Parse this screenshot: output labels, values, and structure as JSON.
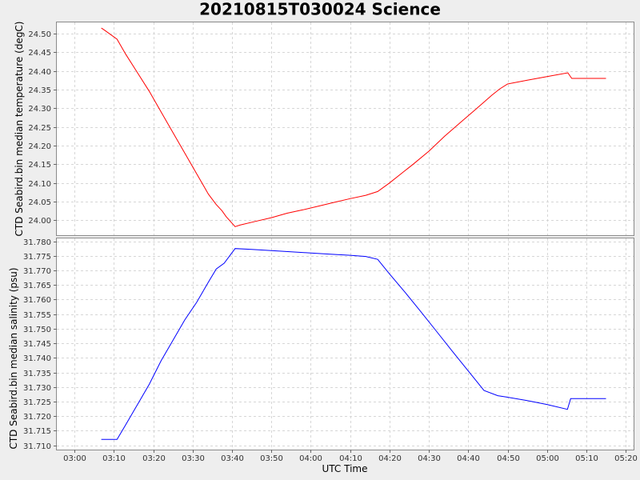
{
  "chart_data": {
    "type": "line",
    "title": "20210815T030024 Science",
    "xlabel": "UTC Time",
    "x_ticks": [
      "03:00",
      "03:10",
      "03:20",
      "03:30",
      "03:40",
      "03:50",
      "04:00",
      "04:10",
      "04:20",
      "04:30",
      "04:40",
      "04:50",
      "05:00",
      "05:10",
      "05:20"
    ],
    "x_tick_minutes": [
      180,
      190,
      200,
      210,
      220,
      230,
      240,
      250,
      260,
      270,
      280,
      290,
      300,
      310,
      320
    ],
    "xlim_minutes": [
      175.5,
      322
    ],
    "grid": true,
    "panels": [
      {
        "ylabel": "CTD Seabird.bin median temperature (degC)",
        "ylim": [
          23.96,
          24.53
        ],
        "y_ticks": [
          "24.00",
          "24.05",
          "24.10",
          "24.15",
          "24.20",
          "24.25",
          "24.30",
          "24.35",
          "24.40",
          "24.45",
          "24.50"
        ],
        "y_tick_values": [
          24.0,
          24.05,
          24.1,
          24.15,
          24.2,
          24.25,
          24.3,
          24.35,
          24.4,
          24.45,
          24.5
        ],
        "series": [
          {
            "color": "#ff0000",
            "x_minutes": [
              186.8,
              187.5,
              190.8,
              193,
              196,
              199,
              202,
              205,
              208,
              211,
              214,
              216,
              217.5,
              218.5,
              220.8,
              222,
              226,
              230,
              234,
              238,
              242,
              246,
              250,
              254,
              257,
              260,
              263,
              266,
              270,
              274,
              278,
              282,
              286,
              288,
              290,
              295,
              300,
              305.3,
              306.3,
              315
            ],
            "y_values": [
              24.515,
              24.51,
              24.485,
              24.445,
              24.395,
              24.345,
              24.29,
              24.235,
              24.18,
              24.125,
              24.07,
              24.042,
              24.025,
              24.01,
              23.983,
              23.987,
              23.997,
              24.007,
              24.019,
              24.028,
              24.038,
              24.048,
              24.058,
              24.067,
              24.077,
              24.1,
              24.125,
              24.15,
              24.185,
              24.225,
              24.262,
              24.298,
              24.335,
              24.352,
              24.365,
              24.375,
              24.385,
              24.395,
              24.38,
              24.38
            ]
          }
        ]
      },
      {
        "ylabel": "CTD Seabird.bin median salinity (psu)",
        "ylim": [
          31.7085,
          31.781
        ],
        "y_ticks": [
          "31.710",
          "31.715",
          "31.720",
          "31.725",
          "31.730",
          "31.735",
          "31.740",
          "31.745",
          "31.750",
          "31.755",
          "31.760",
          "31.765",
          "31.770",
          "31.775",
          "31.780"
        ],
        "y_tick_values": [
          31.71,
          31.715,
          31.72,
          31.725,
          31.73,
          31.735,
          31.74,
          31.745,
          31.75,
          31.755,
          31.76,
          31.765,
          31.77,
          31.775,
          31.78
        ],
        "series": [
          {
            "color": "#0000ff",
            "x_minutes": [
              186.8,
              190.8,
              193,
              196,
              199,
              202,
              205,
              208,
              211,
              214,
              216,
              218,
              220.8,
              225,
              230,
              235,
              240,
              245,
              250,
              254,
              257,
              260,
              264,
              268,
              272,
              276,
              280,
              284,
              287.5,
              290,
              295,
              300,
              305.2,
              306,
              315
            ],
            "y_values": [
              31.712,
              31.712,
              31.717,
              31.724,
              31.731,
              31.739,
              31.746,
              31.753,
              31.759,
              31.766,
              31.7705,
              31.7725,
              31.7775,
              31.7772,
              31.7768,
              31.7764,
              31.776,
              31.7756,
              31.7752,
              31.7748,
              31.7738,
              31.7688,
              31.7624,
              31.7558,
              31.749,
              31.7422,
              31.7355,
              31.7288,
              31.727,
              31.7265,
              31.7253,
              31.724,
              31.7223,
              31.726,
              31.726
            ]
          }
        ]
      }
    ]
  }
}
